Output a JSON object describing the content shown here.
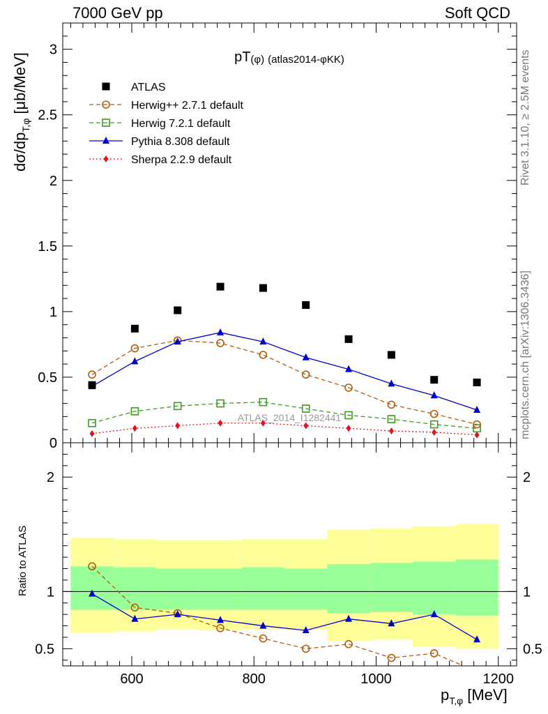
{
  "header": {
    "left": "7000 GeV pp",
    "right": "Soft QCD"
  },
  "side_text": {
    "rivet": "Rivet 3.1.10, ≥ 2.5M events",
    "mcplots": "mcplots.cern.ch [arXiv:1306.3436]"
  },
  "chart_data": [
    {
      "type": "line",
      "panel": "main",
      "title_main": "pT",
      "title_sub": "(φ)",
      "title_rest": "(atlas2014-φKK)",
      "ylabel": "dσ/dp",
      "ylabel_sub": "T,φ",
      "ylabel_unit": "[μb/MeV]",
      "xlim": [
        487,
        1230
      ],
      "ylim": [
        0,
        3.2
      ],
      "yticks": [
        0,
        0.5,
        1,
        1.5,
        2,
        2.5,
        3
      ],
      "ytick_labels": [
        "0",
        "0.5",
        "1",
        "1.5",
        "2",
        "2.5",
        "3"
      ],
      "watermark": "ATLAS_2014_I1282441",
      "legend_position": "top-left",
      "x": [
        535,
        605,
        675,
        745,
        815,
        885,
        955,
        1025,
        1095,
        1165
      ],
      "series": [
        {
          "name": "ATLAS",
          "color": "#000000",
          "marker": "square",
          "line": "none",
          "values": [
            0.44,
            0.87,
            1.01,
            1.19,
            1.18,
            1.05,
            0.79,
            0.67,
            0.48,
            0.46
          ]
        },
        {
          "name": "Herwig++ 2.7.1 default",
          "color": "#b35c0b",
          "marker": "open-circle",
          "line": "dashed",
          "values": [
            0.52,
            0.72,
            0.78,
            0.76,
            0.67,
            0.52,
            0.42,
            0.29,
            0.22,
            0.14
          ]
        },
        {
          "name": "Herwig 7.2.1 default",
          "color": "#3f9a1f",
          "marker": "open-square",
          "line": "dashed",
          "values": [
            0.15,
            0.24,
            0.28,
            0.3,
            0.31,
            0.26,
            0.21,
            0.18,
            0.14,
            0.11
          ]
        },
        {
          "name": "Pythia 8.308 default",
          "color": "#0000cc",
          "marker": "triangle",
          "line": "solid",
          "values": [
            0.43,
            0.62,
            0.77,
            0.84,
            0.77,
            0.65,
            0.56,
            0.45,
            0.36,
            0.25
          ]
        },
        {
          "name": "Sherpa 2.2.9 default",
          "color": "#e0141e",
          "marker": "diamond",
          "line": "dotted",
          "values": [
            0.07,
            0.11,
            0.13,
            0.15,
            0.15,
            0.13,
            0.11,
            0.09,
            0.08,
            0.06
          ]
        }
      ]
    },
    {
      "type": "line",
      "panel": "ratio",
      "ylabel": "Ratio to ATLAS",
      "xlabel": "p",
      "xlabel_sub": "T,φ",
      "xlabel_unit": "[MeV]",
      "xlim": [
        487,
        1230
      ],
      "ylim": [
        0.35,
        2.3
      ],
      "xticks": [
        600,
        800,
        1000,
        1200
      ],
      "xtick_labels": [
        "600",
        "800",
        "1000",
        "1200"
      ],
      "yticks": [
        0.5,
        1,
        2
      ],
      "ytick_labels": [
        "0.5",
        "1",
        "2"
      ],
      "reference_line": 1,
      "bins": [
        [
          500,
          570
        ],
        [
          570,
          640
        ],
        [
          640,
          710
        ],
        [
          710,
          780
        ],
        [
          780,
          850
        ],
        [
          850,
          920
        ],
        [
          920,
          990
        ],
        [
          990,
          1060
        ],
        [
          1060,
          1130
        ],
        [
          1130,
          1200
        ]
      ],
      "band_yellow": [
        [
          0.64,
          1.47
        ],
        [
          0.65,
          1.46
        ],
        [
          0.67,
          1.45
        ],
        [
          0.66,
          1.45
        ],
        [
          0.67,
          1.46
        ],
        [
          0.67,
          1.46
        ],
        [
          0.57,
          1.54
        ],
        [
          0.58,
          1.55
        ],
        [
          0.52,
          1.57
        ],
        [
          0.5,
          1.59
        ]
      ],
      "band_green": [
        [
          0.84,
          1.22
        ],
        [
          0.84,
          1.21
        ],
        [
          0.84,
          1.2
        ],
        [
          0.84,
          1.2
        ],
        [
          0.84,
          1.21
        ],
        [
          0.84,
          1.2
        ],
        [
          0.81,
          1.24
        ],
        [
          0.82,
          1.25
        ],
        [
          0.8,
          1.26
        ],
        [
          0.79,
          1.28
        ]
      ],
      "x": [
        535,
        605,
        675,
        745,
        815,
        885,
        955,
        1025,
        1095,
        1165
      ],
      "series": [
        {
          "name": "Herwig++ 2.7.1 default",
          "color": "#b35c0b",
          "marker": "open-circle",
          "line": "dashed",
          "values": [
            1.22,
            0.86,
            0.81,
            0.68,
            0.59,
            0.5,
            0.54,
            0.42,
            0.46,
            0.3
          ]
        },
        {
          "name": "Pythia 8.308 default",
          "color": "#0000cc",
          "marker": "triangle",
          "line": "solid",
          "values": [
            0.98,
            0.76,
            0.8,
            0.75,
            0.7,
            0.66,
            0.76,
            0.72,
            0.8,
            0.58
          ]
        }
      ]
    }
  ]
}
